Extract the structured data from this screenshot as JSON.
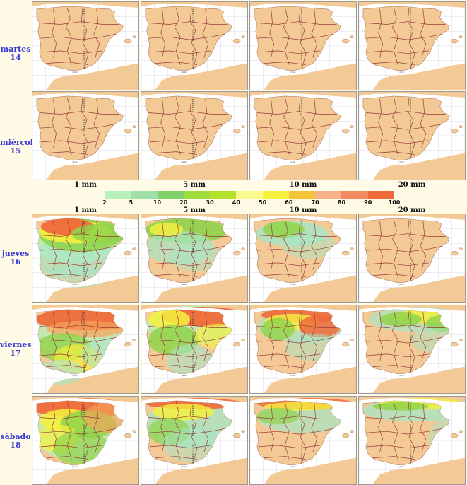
{
  "days": [
    {
      "name": "martes",
      "num": "14"
    },
    {
      "name": "miércoles",
      "num": "15"
    },
    {
      "name": "jueves",
      "num": "16"
    },
    {
      "name": "viernes",
      "num": "17"
    },
    {
      "name": "sábado",
      "num": "18"
    }
  ],
  "thresholds": [
    "1 mm",
    "5 mm",
    "10 mm",
    "20 mm"
  ],
  "legend": {
    "ticks": [
      "2",
      "5",
      "10",
      "20",
      "30",
      "40",
      "50",
      "60",
      "70",
      "80",
      "90",
      "100"
    ],
    "colors": [
      "#b9f0b9",
      "#9fe0a8",
      "#7fd36a",
      "#9fdc3c",
      "#b3e22a",
      "#f9f98e",
      "#f5f13c",
      "#f3c63a",
      "#f7b28a",
      "#f48a60",
      "#f06a3a"
    ]
  },
  "map_label": "≈≈"
}
